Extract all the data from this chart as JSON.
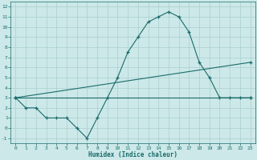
{
  "xlabel": "Humidex (Indice chaleur)",
  "background_color": "#cce8e8",
  "grid_color": "#aacfcf",
  "line_color": "#1a6b6b",
  "x_ticks": [
    0,
    1,
    2,
    3,
    4,
    5,
    6,
    7,
    8,
    9,
    10,
    11,
    12,
    13,
    14,
    15,
    16,
    17,
    18,
    19,
    20,
    21,
    22,
    23
  ],
  "y_ticks": [
    -1,
    0,
    1,
    2,
    3,
    4,
    5,
    6,
    7,
    8,
    9,
    10,
    11,
    12
  ],
  "ylim": [
    -1.5,
    12.5
  ],
  "xlim": [
    -0.5,
    23.5
  ],
  "series": [
    {
      "x": [
        0,
        1,
        2,
        3,
        4,
        5,
        6,
        7,
        8,
        9,
        10,
        11,
        12,
        13,
        14,
        15,
        16,
        17,
        18,
        19,
        20,
        21,
        22,
        23
      ],
      "y": [
        3,
        2,
        2,
        1,
        1,
        1,
        0,
        -1,
        1,
        3,
        5,
        7.5,
        9,
        10.5,
        11,
        11.5,
        11,
        9.5,
        6.5,
        5,
        3,
        3,
        3,
        3
      ]
    },
    {
      "x": [
        0,
        23
      ],
      "y": [
        3,
        6.5
      ]
    },
    {
      "x": [
        0,
        23
      ],
      "y": [
        3,
        3
      ]
    }
  ]
}
